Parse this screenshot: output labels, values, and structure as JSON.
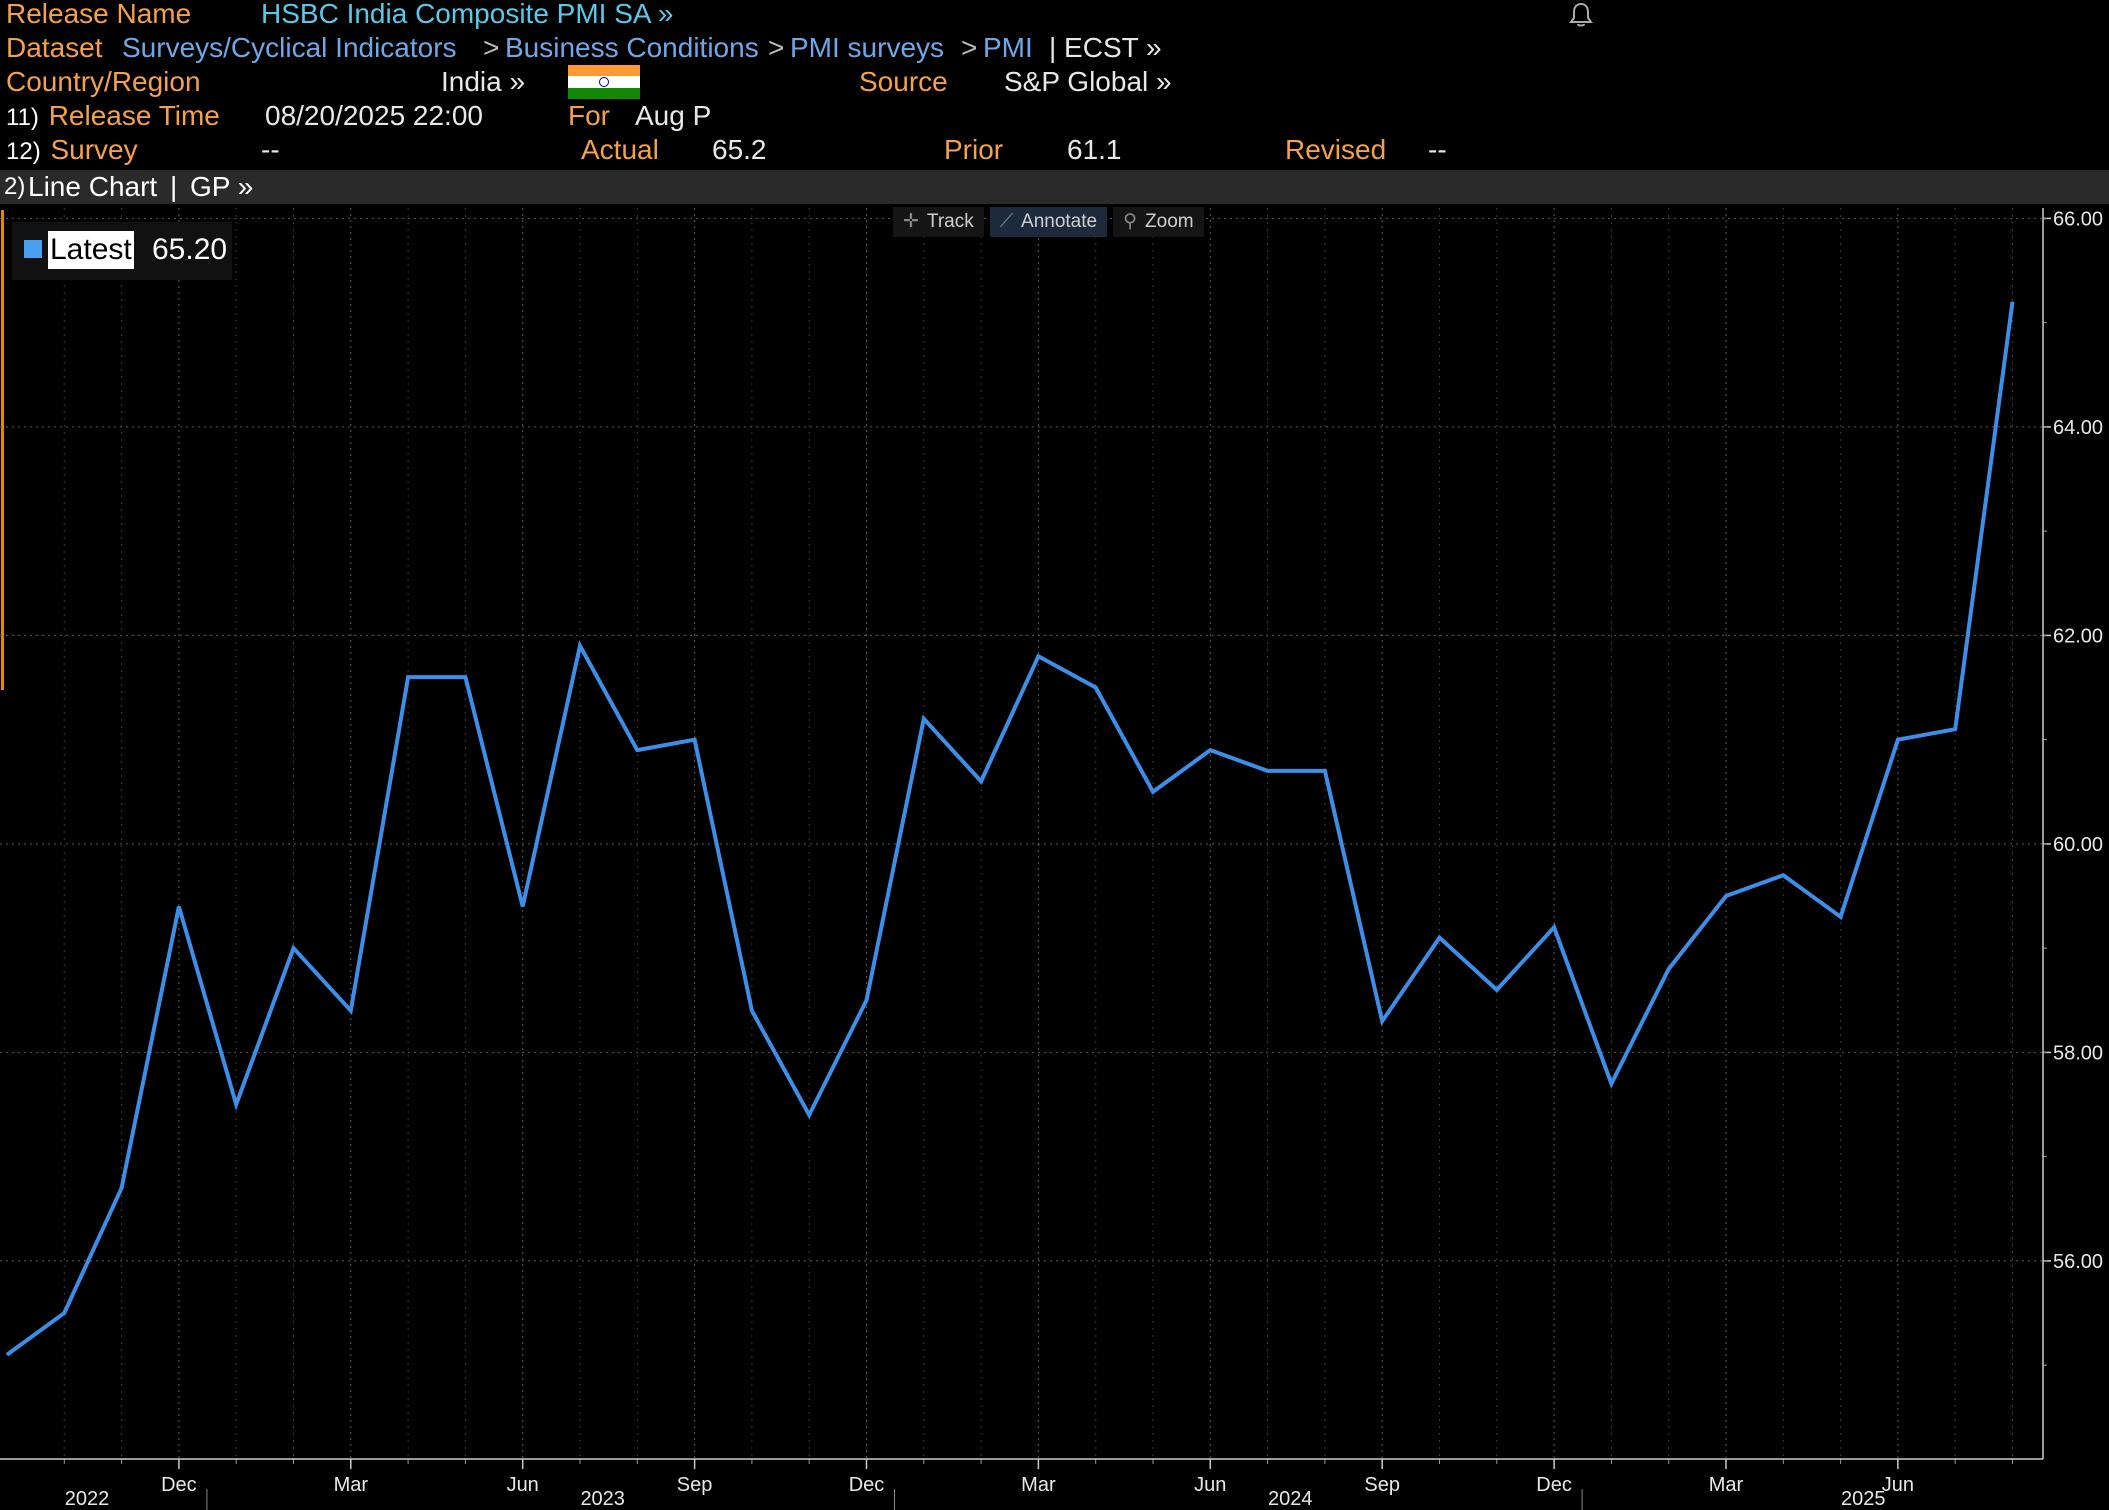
{
  "header": {
    "release_name_label": "Release Name",
    "release_name_value": "HSBC India Composite PMI SA »",
    "dataset_label": "Dataset",
    "dataset_path": [
      "Surveys/Cyclical Indicators",
      "Business Conditions",
      "PMI surveys",
      "PMI"
    ],
    "dataset_separator": ">",
    "dataset_suffix": "| ECST »",
    "country_label": "Country/Region",
    "country_value": "India »",
    "source_label": "Source",
    "source_value": "S&P Global »",
    "release_time_num": "11)",
    "release_time_label": "Release Time",
    "release_time_value": "08/20/2025 22:00",
    "for_label": "For",
    "for_value": "Aug P",
    "survey_num": "12)",
    "survey_label": "Survey",
    "survey_value": "--",
    "actual_label": "Actual",
    "actual_value": "65.2",
    "prior_label": "Prior",
    "prior_value": "61.1",
    "revised_label": "Revised",
    "revised_value": "--"
  },
  "chart_bar": {
    "num": "2)",
    "label": "Line Chart",
    "sep": "|",
    "gp": "GP »"
  },
  "toolbar": {
    "track": "Track",
    "annotate": "Annotate",
    "zoom": "Zoom"
  },
  "legend": {
    "label": "Latest",
    "value": "65.20"
  },
  "icons": [
    "bell-icon",
    "track-icon",
    "annotate-icon",
    "zoom-icon"
  ],
  "colors": {
    "line": "#3d8ee8",
    "orange": "#f5a04a",
    "cyan": "#5bc8ea",
    "grid": "#5a5a5a"
  },
  "chart_data": {
    "type": "line",
    "title": "",
    "xlabel": "",
    "ylabel": "",
    "ylim": [
      54.1,
      66.1
    ],
    "y_ticks": [
      "56.00",
      "58.00",
      "60.00",
      "62.00",
      "64.00",
      "66.00"
    ],
    "x_month_ticks": [
      {
        "label": "Dec",
        "date": "2022-12"
      },
      {
        "label": "Mar",
        "date": "2023-03"
      },
      {
        "label": "Jun",
        "date": "2023-06"
      },
      {
        "label": "Sep",
        "date": "2023-09"
      },
      {
        "label": "Dec",
        "date": "2023-12"
      },
      {
        "label": "Mar",
        "date": "2024-03"
      },
      {
        "label": "Jun",
        "date": "2024-06"
      },
      {
        "label": "Sep",
        "date": "2024-09"
      },
      {
        "label": "Dec",
        "date": "2024-12"
      },
      {
        "label": "Mar",
        "date": "2025-03"
      },
      {
        "label": "Jun",
        "date": "2025-06"
      }
    ],
    "x_year_ticks": [
      {
        "label": "2022",
        "date": "2022-09"
      },
      {
        "label": "2023",
        "date": "2023-06"
      },
      {
        "label": "2024",
        "date": "2024-06"
      },
      {
        "label": "2025",
        "date": "2025-04"
      }
    ],
    "series": [
      {
        "name": "Latest",
        "x": [
          "2022-09",
          "2022-10",
          "2022-11",
          "2022-12",
          "2023-01",
          "2023-02",
          "2023-03",
          "2023-04",
          "2023-05",
          "2023-06",
          "2023-07",
          "2023-08",
          "2023-09",
          "2023-10",
          "2023-11",
          "2023-12",
          "2024-01",
          "2024-02",
          "2024-03",
          "2024-04",
          "2024-05",
          "2024-06",
          "2024-07",
          "2024-08",
          "2024-09",
          "2024-10",
          "2024-11",
          "2024-12",
          "2025-01",
          "2025-02",
          "2025-03",
          "2025-04",
          "2025-05",
          "2025-06",
          "2025-07",
          "2025-08"
        ],
        "values": [
          55.1,
          55.5,
          56.7,
          59.4,
          57.5,
          59.0,
          58.4,
          61.6,
          61.6,
          59.4,
          61.9,
          60.9,
          61.0,
          58.4,
          57.4,
          58.5,
          61.2,
          60.6,
          61.8,
          61.5,
          60.5,
          60.9,
          60.7,
          60.7,
          58.3,
          59.1,
          58.6,
          59.2,
          57.7,
          58.8,
          59.5,
          59.7,
          59.3,
          61.0,
          61.1,
          65.2
        ]
      }
    ]
  }
}
